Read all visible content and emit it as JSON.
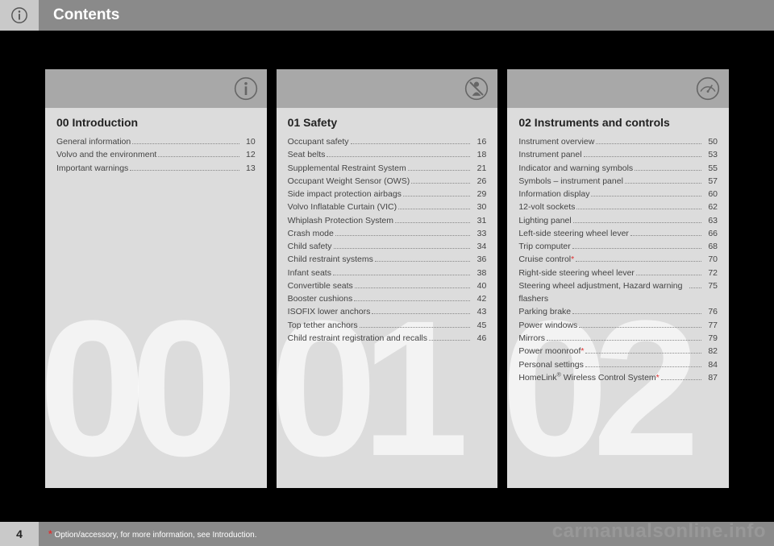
{
  "page": {
    "title": "Contents",
    "number": "4",
    "footnote_marker": "*",
    "footnote_text": " Option/accessory, for more information, see Introduction.",
    "watermark": "carmanualsonline.info"
  },
  "columns": [
    {
      "bignum": "00",
      "head_icon": "info",
      "section_title": "00 Introduction",
      "items": [
        {
          "label": "General information",
          "page": "10"
        },
        {
          "label": "Volvo and the environment",
          "page": "12"
        },
        {
          "label": "Important warnings",
          "page": "13"
        }
      ]
    },
    {
      "bignum": "01",
      "head_icon": "seatbelt",
      "section_title": "01 Safety",
      "items": [
        {
          "label": "Occupant safety",
          "page": "16"
        },
        {
          "label": "Seat belts",
          "page": "18"
        },
        {
          "label": "Supplemental Restraint System",
          "page": "21"
        },
        {
          "label": "Occupant Weight Sensor (OWS)",
          "page": "26"
        },
        {
          "label": "Side impact protection airbags",
          "page": "29"
        },
        {
          "label": "Volvo Inflatable Curtain (VIC)",
          "page": "30"
        },
        {
          "label": "Whiplash Protection System",
          "page": "31"
        },
        {
          "label": "Crash mode",
          "page": "33"
        },
        {
          "label": "Child safety",
          "page": "34"
        },
        {
          "label": "Child restraint systems",
          "page": "36"
        },
        {
          "label": "Infant seats",
          "page": "38"
        },
        {
          "label": "Convertible seats",
          "page": "40"
        },
        {
          "label": "Booster cushions",
          "page": "42"
        },
        {
          "label": "ISOFIX lower anchors",
          "page": "43"
        },
        {
          "label": "Top tether anchors",
          "page": "45"
        },
        {
          "label": "Child restraint registration and recalls",
          "page": "46"
        }
      ]
    },
    {
      "bignum": "02",
      "head_icon": "gauge",
      "section_title": "02 Instruments and controls",
      "items": [
        {
          "label": "Instrument overview",
          "page": "50"
        },
        {
          "label": "Instrument panel",
          "page": "53"
        },
        {
          "label": "Indicator and warning symbols",
          "page": "55"
        },
        {
          "label": "Symbols – instrument panel",
          "page": "57"
        },
        {
          "label": "Information display",
          "page": "60"
        },
        {
          "label": "12-volt sockets",
          "page": "62"
        },
        {
          "label": "Lighting panel",
          "page": "63"
        },
        {
          "label": "Left-side steering wheel lever",
          "page": "66"
        },
        {
          "label": "Trip computer",
          "page": "68"
        },
        {
          "label": "Cruise control*",
          "page": "70"
        },
        {
          "label": "Right-side steering wheel lever",
          "page": "72"
        },
        {
          "label": "Steering wheel adjustment, Hazard warning flashers",
          "page": "75"
        },
        {
          "label": "Parking brake",
          "page": "76"
        },
        {
          "label": "Power windows",
          "page": "77"
        },
        {
          "label": "Mirrors",
          "page": "79"
        },
        {
          "label": "Power moonroof*",
          "page": "82"
        },
        {
          "label": "Personal settings",
          "page": "84"
        },
        {
          "label": "HomeLink® Wireless Control System*",
          "page": "87"
        }
      ]
    }
  ],
  "icons": {
    "info_stroke": "#555",
    "seatbelt_fill": "#555",
    "gauge_stroke": "#555"
  }
}
